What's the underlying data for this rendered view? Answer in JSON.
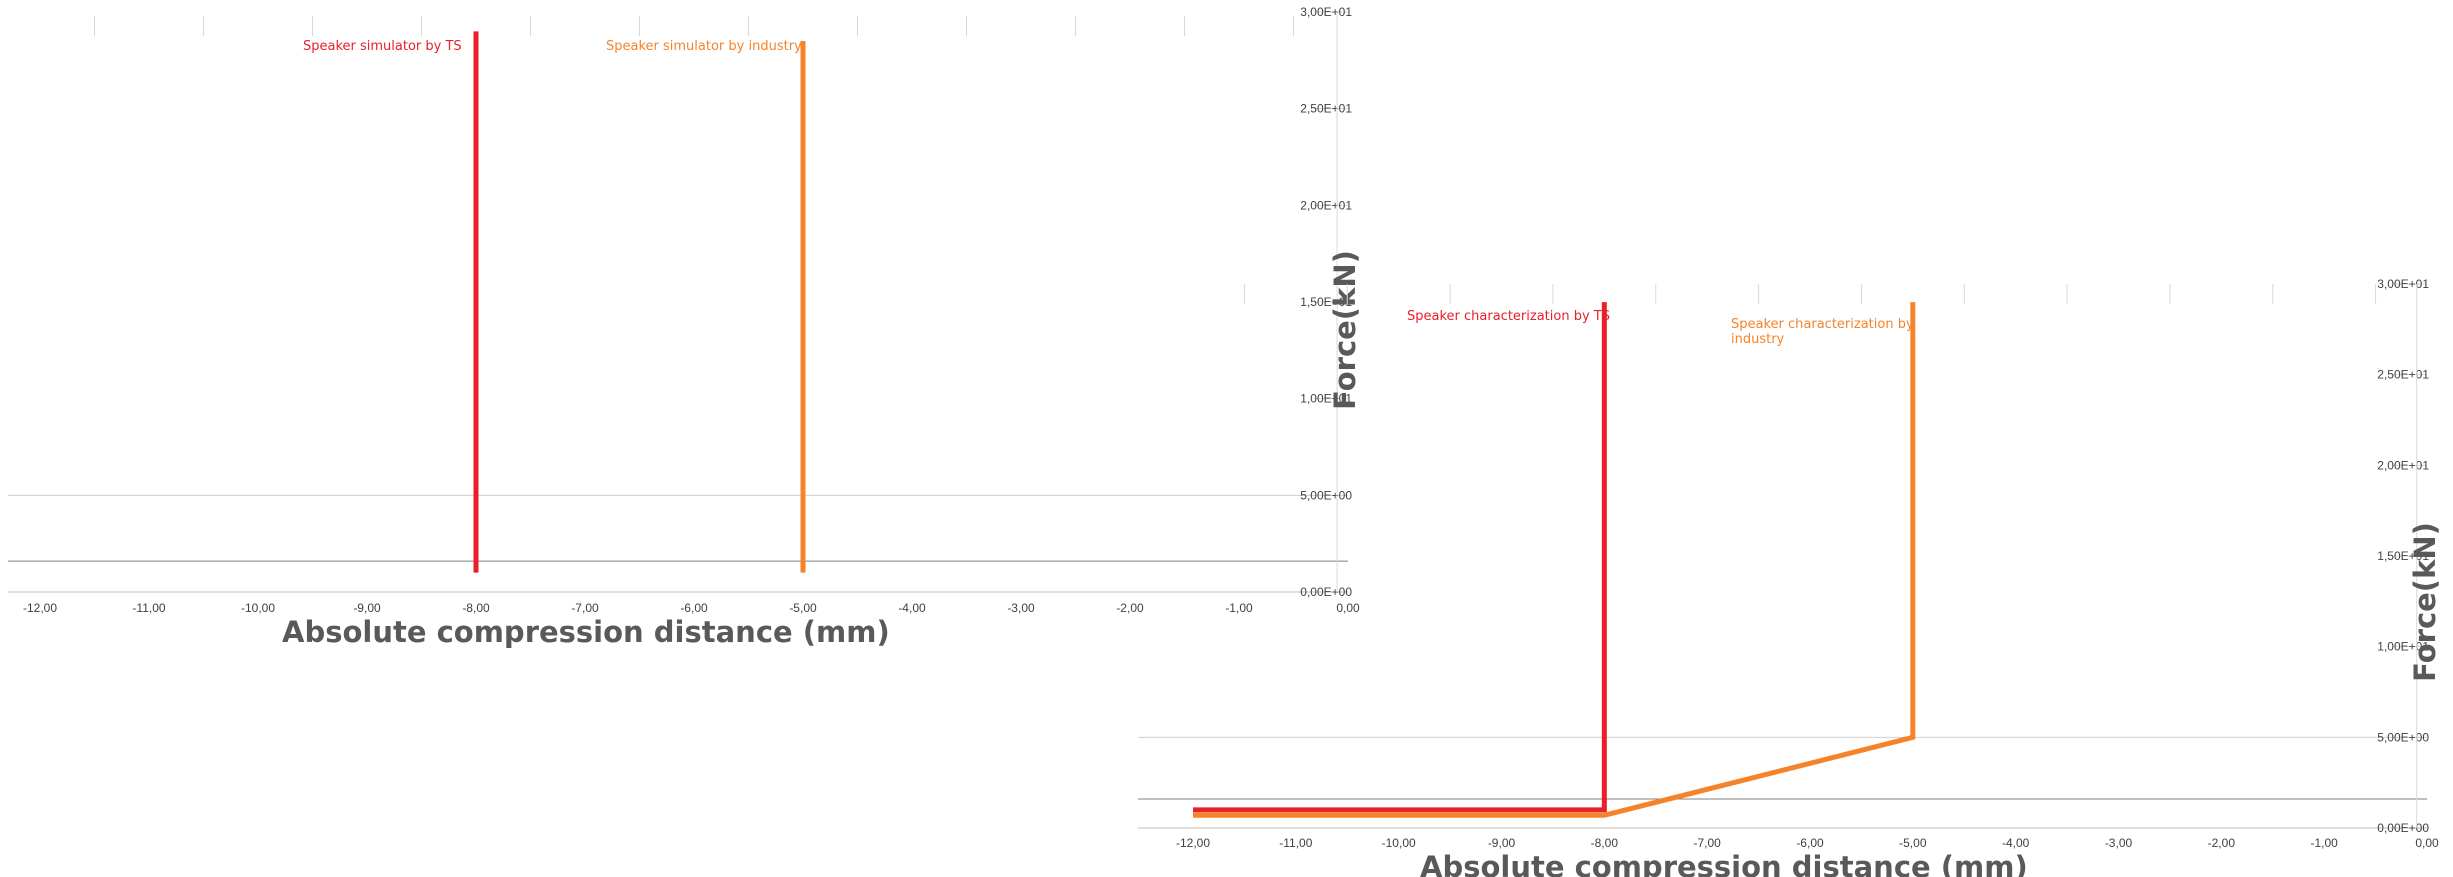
{
  "chart_data": [
    {
      "type": "line",
      "xlabel": "Absolute compression distance (mm)",
      "ylabel": "Force(kN)",
      "xlim": [
        -12.5,
        0
      ],
      "ylim": [
        0,
        30
      ],
      "x_tick_labels": [
        "-12,00",
        "-11,00",
        "-10,00",
        "-9,00",
        "-8,00",
        "-7,00",
        "-6,00",
        "-5,00",
        "-4,00",
        "-3,00",
        "-2,00",
        "-1,00",
        "0,00"
      ],
      "y_tick_labels": [
        "0,00E+00",
        "5,00E+00",
        "1,00E+01",
        "1,50E+01",
        "2,00E+01",
        "2,50E+01",
        "3,00E+01"
      ],
      "grid": "horizontal",
      "series": [
        {
          "name": "Speaker simulator by TS",
          "color": "#e8202a",
          "x": [
            -8.0,
            -8.0
          ],
          "y": [
            1.0,
            29.0
          ]
        },
        {
          "name": "Speaker simulator by industry",
          "color": "#f5832a",
          "x": [
            -5.0,
            -5.0
          ],
          "y": [
            1.0,
            28.5
          ]
        }
      ]
    },
    {
      "type": "line",
      "xlabel": "Absolute compression distance (mm)",
      "ylabel": "Force(kN)",
      "xlim": [
        -12.5,
        0
      ],
      "ylim": [
        0,
        30
      ],
      "x_tick_labels": [
        "-12,00",
        "-11,00",
        "-10,00",
        "-9,00",
        "-8,00",
        "-7,00",
        "-6,00",
        "-5,00",
        "-4,00",
        "-3,00",
        "-2,00",
        "-1,00",
        "0,00"
      ],
      "y_tick_labels": [
        "0,00E+00",
        "5,00E+00",
        "1,00E+01",
        "1,50E+01",
        "2,00E+01",
        "2,50E+01",
        "3,00E+01"
      ],
      "grid": "horizontal",
      "series": [
        {
          "name": "Speaker characterization by TS",
          "color": "#e8202a",
          "x": [
            -12.0,
            -8.0,
            -8.0
          ],
          "y": [
            1.0,
            1.0,
            29.0
          ]
        },
        {
          "name": "Speaker characterization by industry",
          "color": "#f5832a",
          "x": [
            -12.0,
            -8.0,
            -5.0,
            -5.0
          ],
          "y": [
            0.7,
            0.7,
            5.0,
            29.0
          ]
        }
      ]
    }
  ]
}
